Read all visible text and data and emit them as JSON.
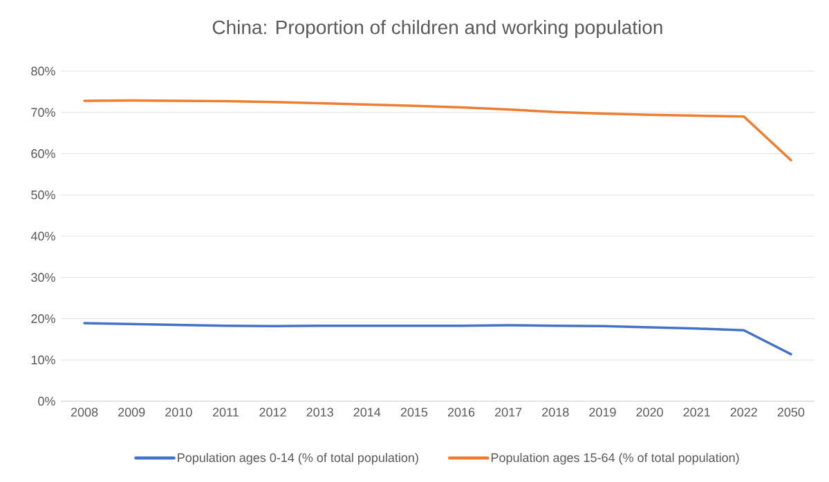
{
  "chart_data": {
    "type": "line",
    "title": "China: Proportion of children and working population",
    "categories": [
      "2008",
      "2009",
      "2010",
      "2011",
      "2012",
      "2013",
      "2014",
      "2015",
      "2016",
      "2017",
      "2018",
      "2019",
      "2020",
      "2021",
      "2022",
      "2050"
    ],
    "series": [
      {
        "name": "Population ages 0-14 (% of total population)",
        "color": "#4472c4",
        "values": [
          18.9,
          18.7,
          18.5,
          18.3,
          18.2,
          18.3,
          18.3,
          18.3,
          18.3,
          18.4,
          18.3,
          18.2,
          17.9,
          17.6,
          17.2,
          11.4
        ]
      },
      {
        "name": "Population ages 15-64 (% of total population)",
        "color": "#ed7d31",
        "values": [
          72.8,
          72.9,
          72.8,
          72.7,
          72.5,
          72.2,
          71.9,
          71.6,
          71.2,
          70.7,
          70.1,
          69.7,
          69.4,
          69.2,
          69.0,
          58.4
        ]
      }
    ],
    "ylim": [
      0,
      80
    ],
    "yticks": [
      {
        "value": 0,
        "label": "0%"
      },
      {
        "value": 10,
        "label": "10%"
      },
      {
        "value": 20,
        "label": "20%"
      },
      {
        "value": 30,
        "label": "30%"
      },
      {
        "value": 40,
        "label": "40%"
      },
      {
        "value": 50,
        "label": "50%"
      },
      {
        "value": 60,
        "label": "60%"
      },
      {
        "value": 70,
        "label": "70%"
      },
      {
        "value": 80,
        "label": "80%"
      }
    ],
    "grid": "y",
    "legend": "bottom",
    "marker": "none",
    "line_style": "solid"
  }
}
